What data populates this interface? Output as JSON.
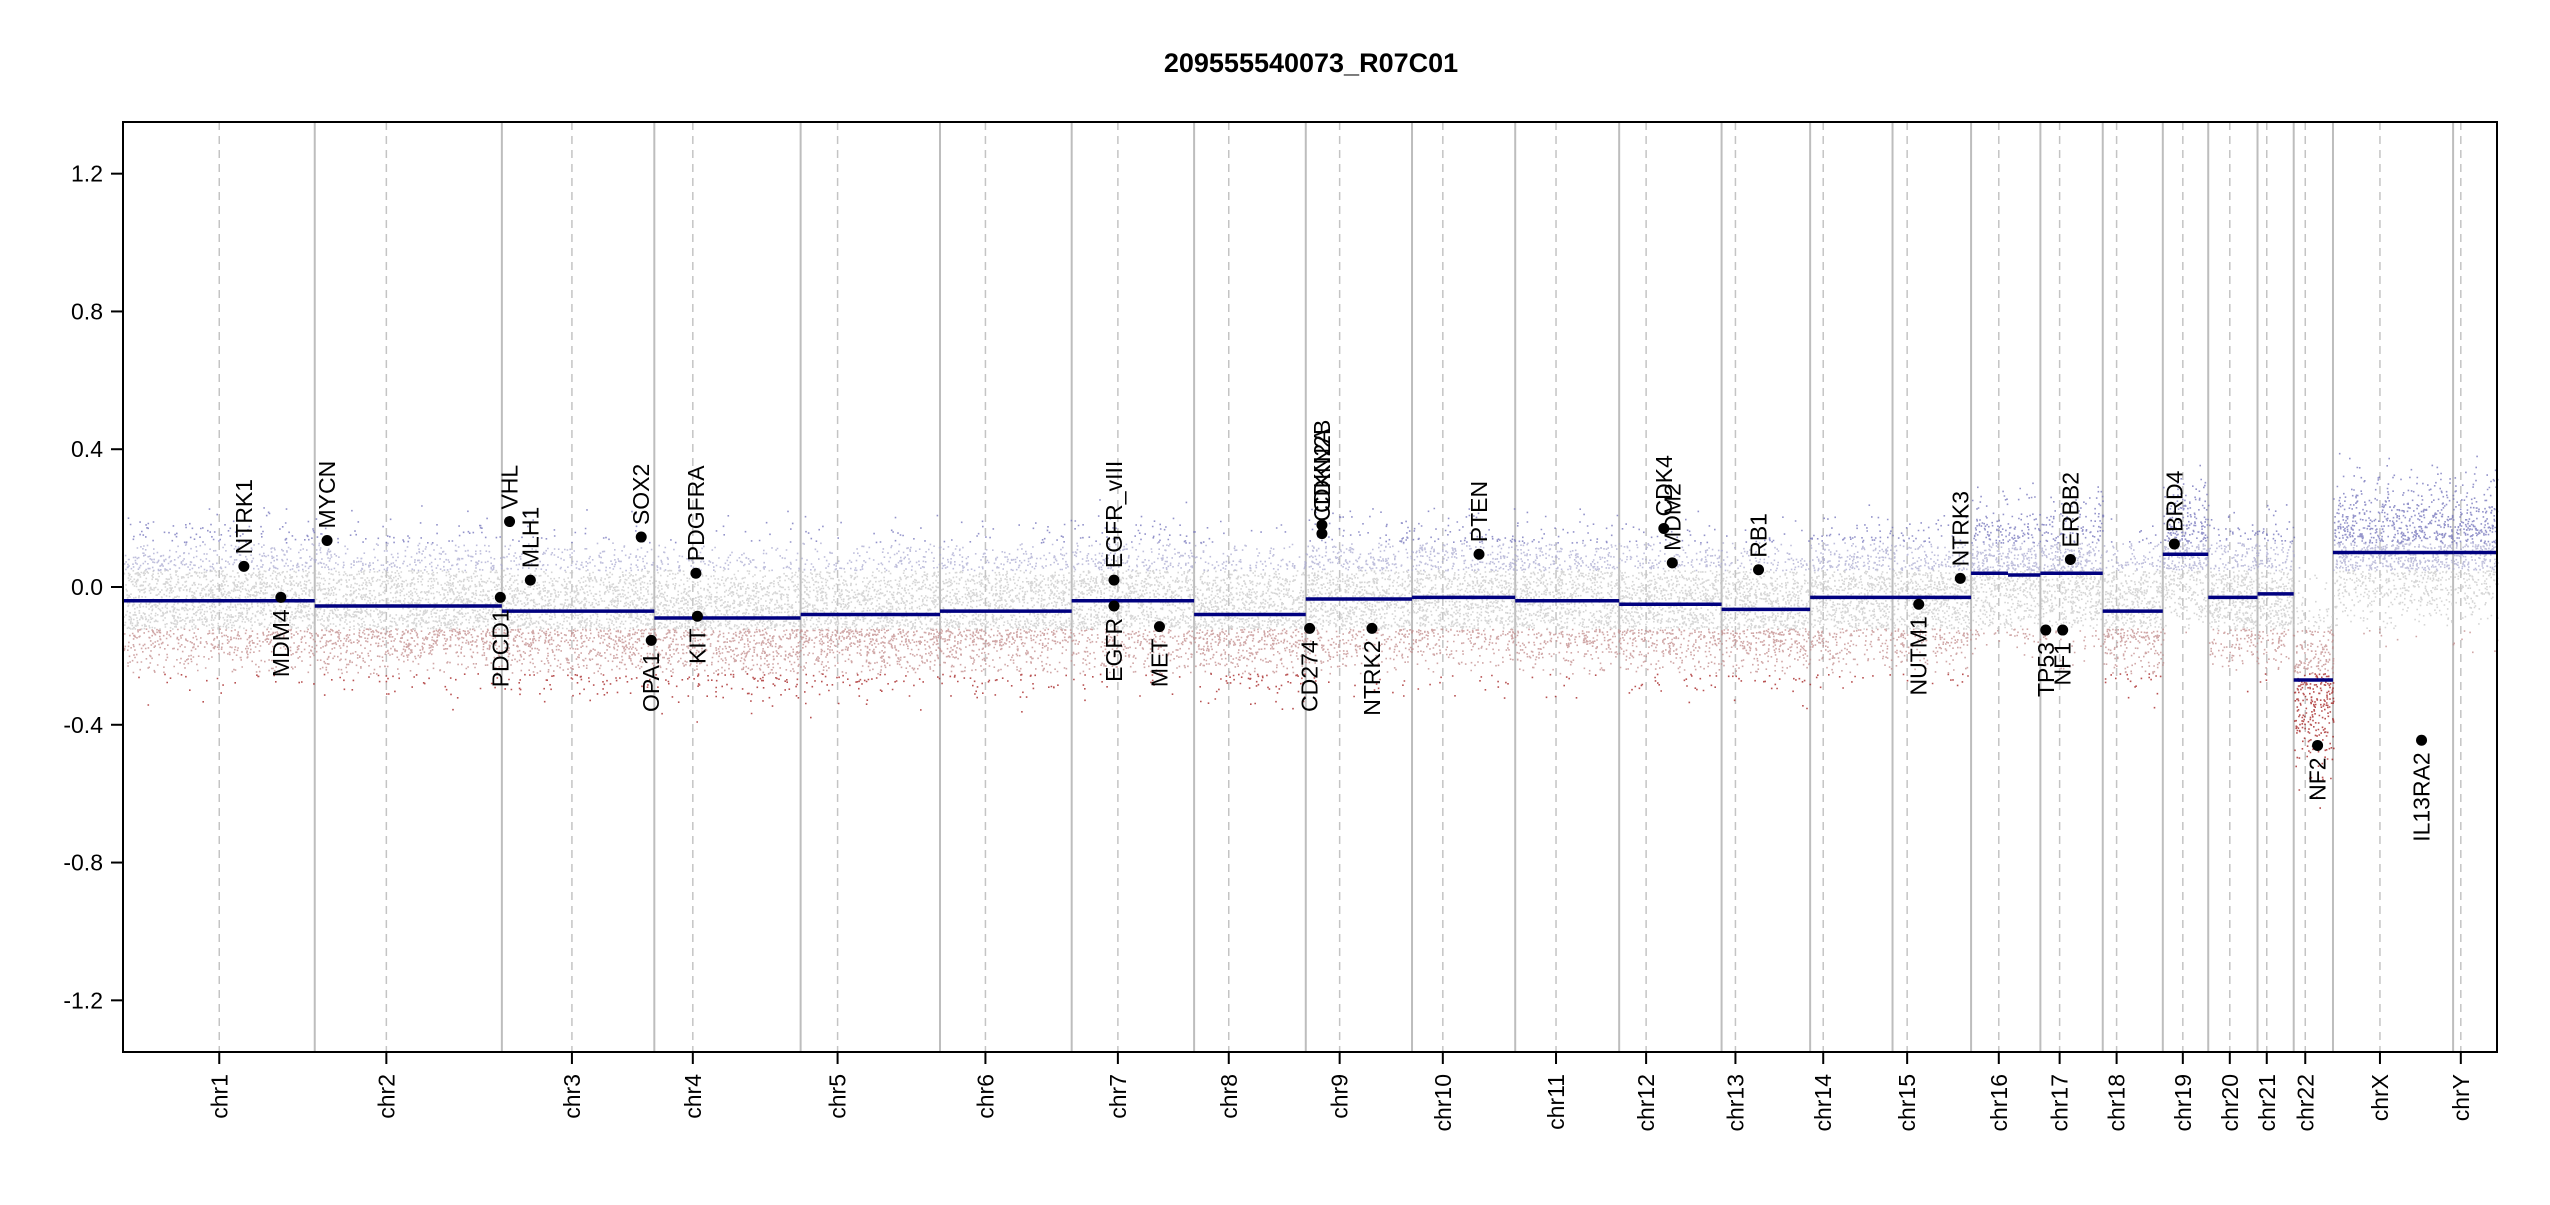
{
  "chart_data": {
    "type": "scatter",
    "title": "209555540073_R07C01",
    "xlabel": "",
    "ylabel": "",
    "ylim": [
      -1.35,
      1.35
    ],
    "yticks": [
      -1.2,
      -0.8,
      -0.4,
      0.0,
      0.4,
      0.8,
      1.2
    ],
    "ytick_labels": [
      "-1.2",
      "-0.8",
      "-0.4",
      "0.0",
      "0.4",
      "0.8",
      "1.2"
    ],
    "colors": {
      "segment": "#00007f",
      "gain": "#6f6fb8",
      "loss": "#a01818",
      "neutral": "#c8c8c8",
      "axis": "#000000",
      "divider": "#bdbdbd"
    },
    "chromosomes": [
      {
        "name": "chr1",
        "start": 0,
        "end": 249,
        "centromere": 125,
        "segments": [
          {
            "from": 0,
            "to": 249,
            "value": -0.04
          }
        ]
      },
      {
        "name": "chr2",
        "start": 249,
        "end": 492,
        "centromere": 342,
        "segments": [
          {
            "from": 249,
            "to": 492,
            "value": -0.055
          }
        ]
      },
      {
        "name": "chr3",
        "start": 492,
        "end": 690,
        "centromere": 583,
        "segments": [
          {
            "from": 492,
            "to": 690,
            "value": -0.07
          }
        ]
      },
      {
        "name": "chr4",
        "start": 690,
        "end": 880,
        "centromere": 740,
        "segments": [
          {
            "from": 690,
            "to": 880,
            "value": -0.09
          }
        ]
      },
      {
        "name": "chr5",
        "start": 880,
        "end": 1061,
        "centromere": 928,
        "segments": [
          {
            "from": 880,
            "to": 1061,
            "value": -0.08
          }
        ]
      },
      {
        "name": "chr6",
        "start": 1061,
        "end": 1232,
        "centromere": 1120,
        "segments": [
          {
            "from": 1061,
            "to": 1232,
            "value": -0.07
          }
        ]
      },
      {
        "name": "chr7",
        "start": 1232,
        "end": 1391,
        "centromere": 1292,
        "segments": [
          {
            "from": 1232,
            "to": 1391,
            "value": -0.04
          }
        ]
      },
      {
        "name": "chr8",
        "start": 1391,
        "end": 1536,
        "centromere": 1436,
        "segments": [
          {
            "from": 1391,
            "to": 1536,
            "value": -0.08
          }
        ]
      },
      {
        "name": "chr9",
        "start": 1536,
        "end": 1674,
        "centromere": 1580,
        "segments": [
          {
            "from": 1536,
            "to": 1674,
            "value": -0.035
          }
        ]
      },
      {
        "name": "chr10",
        "start": 1674,
        "end": 1808,
        "centromere": 1714,
        "segments": [
          {
            "from": 1674,
            "to": 1808,
            "value": -0.03
          }
        ]
      },
      {
        "name": "chr11",
        "start": 1808,
        "end": 1943,
        "centromere": 1861,
        "segments": [
          {
            "from": 1808,
            "to": 1943,
            "value": -0.04
          }
        ]
      },
      {
        "name": "chr12",
        "start": 1943,
        "end": 2076,
        "centromere": 1978,
        "segments": [
          {
            "from": 1943,
            "to": 2076,
            "value": -0.05
          }
        ]
      },
      {
        "name": "chr13",
        "start": 2076,
        "end": 2191,
        "centromere": 2094,
        "segments": [
          {
            "from": 2076,
            "to": 2191,
            "value": -0.065
          }
        ]
      },
      {
        "name": "chr14",
        "start": 2191,
        "end": 2298,
        "centromere": 2208,
        "segments": [
          {
            "from": 2191,
            "to": 2298,
            "value": -0.03
          }
        ]
      },
      {
        "name": "chr15",
        "start": 2298,
        "end": 2400,
        "centromere": 2317,
        "segments": [
          {
            "from": 2298,
            "to": 2400,
            "value": -0.03
          }
        ]
      },
      {
        "name": "chr16",
        "start": 2400,
        "end": 2490,
        "centromere": 2436,
        "segments": [
          {
            "from": 2400,
            "to": 2448,
            "value": 0.04
          },
          {
            "from": 2448,
            "to": 2490,
            "value": 0.035
          }
        ]
      },
      {
        "name": "chr17",
        "start": 2490,
        "end": 2571,
        "centromere": 2515,
        "segments": [
          {
            "from": 2490,
            "to": 2571,
            "value": 0.04
          }
        ]
      },
      {
        "name": "chr18",
        "start": 2571,
        "end": 2649,
        "centromere": 2589,
        "segments": [
          {
            "from": 2571,
            "to": 2649,
            "value": -0.07
          }
        ]
      },
      {
        "name": "chr19",
        "start": 2649,
        "end": 2708,
        "centromere": 2675,
        "segments": [
          {
            "from": 2649,
            "to": 2708,
            "value": 0.095
          }
        ]
      },
      {
        "name": "chr20",
        "start": 2708,
        "end": 2772,
        "centromere": 2736,
        "segments": [
          {
            "from": 2708,
            "to": 2772,
            "value": -0.03
          }
        ]
      },
      {
        "name": "chr21",
        "start": 2772,
        "end": 2819,
        "centromere": 2784,
        "segments": [
          {
            "from": 2772,
            "to": 2819,
            "value": -0.02
          }
        ]
      },
      {
        "name": "chr22",
        "start": 2819,
        "end": 2870,
        "centromere": 2834,
        "segments": [
          {
            "from": 2819,
            "to": 2870,
            "value": -0.27
          }
        ]
      },
      {
        "name": "chrX",
        "start": 2870,
        "end": 3026,
        "centromere": 2931,
        "segments": [
          {
            "from": 2870,
            "to": 3026,
            "value": 0.1
          }
        ]
      },
      {
        "name": "chrY",
        "start": 3026,
        "end": 3083,
        "centromere": 3036,
        "segments": [
          {
            "from": 3026,
            "to": 3083,
            "value": 0.1
          }
        ]
      }
    ],
    "genes": [
      {
        "name": "NTRK1",
        "pos": 157,
        "value": 0.06,
        "side": "up"
      },
      {
        "name": "MDM4",
        "pos": 205,
        "value": -0.03,
        "side": "down"
      },
      {
        "name": "MYCN",
        "pos": 265,
        "value": 0.135,
        "side": "up"
      },
      {
        "name": "PDCD1",
        "pos": 490,
        "value": -0.03,
        "side": "down"
      },
      {
        "name": "VHL",
        "pos": 502,
        "value": 0.19,
        "side": "up"
      },
      {
        "name": "MLH1",
        "pos": 529,
        "value": 0.02,
        "side": "up"
      },
      {
        "name": "SOX2",
        "pos": 673,
        "value": 0.145,
        "side": "up"
      },
      {
        "name": "OPA1",
        "pos": 686,
        "value": -0.155,
        "side": "down"
      },
      {
        "name": "PDGFRA",
        "pos": 744,
        "value": 0.04,
        "side": "up"
      },
      {
        "name": "KIT",
        "pos": 746,
        "value": -0.085,
        "side": "down"
      },
      {
        "name": "EGFR_vIII",
        "pos": 1287,
        "value": 0.02,
        "side": "up"
      },
      {
        "name": "EGFR",
        "pos": 1287,
        "value": -0.055,
        "side": "down"
      },
      {
        "name": "MET",
        "pos": 1346,
        "value": -0.115,
        "side": "down"
      },
      {
        "name": "CD274",
        "pos": 1541,
        "value": -0.12,
        "side": "down"
      },
      {
        "name": "CDKN2A",
        "pos": 1557,
        "value": 0.155,
        "side": "up"
      },
      {
        "name": "CDKN2B",
        "pos": 1557,
        "value": 0.18,
        "side": "up"
      },
      {
        "name": "NTRK2",
        "pos": 1622,
        "value": -0.12,
        "side": "down"
      },
      {
        "name": "PTEN",
        "pos": 1761,
        "value": 0.095,
        "side": "up"
      },
      {
        "name": "CDK4",
        "pos": 2001,
        "value": 0.17,
        "side": "up"
      },
      {
        "name": "MDM2",
        "pos": 2012,
        "value": 0.07,
        "side": "up"
      },
      {
        "name": "RB1",
        "pos": 2124,
        "value": 0.05,
        "side": "up"
      },
      {
        "name": "NUTM1",
        "pos": 2332,
        "value": -0.05,
        "side": "down"
      },
      {
        "name": "NTRK3",
        "pos": 2386,
        "value": 0.025,
        "side": "up"
      },
      {
        "name": "TP53",
        "pos": 2497,
        "value": -0.125,
        "side": "down"
      },
      {
        "name": "NF1",
        "pos": 2519,
        "value": -0.125,
        "side": "down"
      },
      {
        "name": "ERBB2",
        "pos": 2529,
        "value": 0.08,
        "side": "up"
      },
      {
        "name": "BRD4",
        "pos": 2664,
        "value": 0.125,
        "side": "up"
      },
      {
        "name": "NF2",
        "pos": 2850,
        "value": -0.46,
        "side": "down"
      },
      {
        "name": "IL13RA2",
        "pos": 2985,
        "value": -0.445,
        "side": "down"
      }
    ]
  }
}
